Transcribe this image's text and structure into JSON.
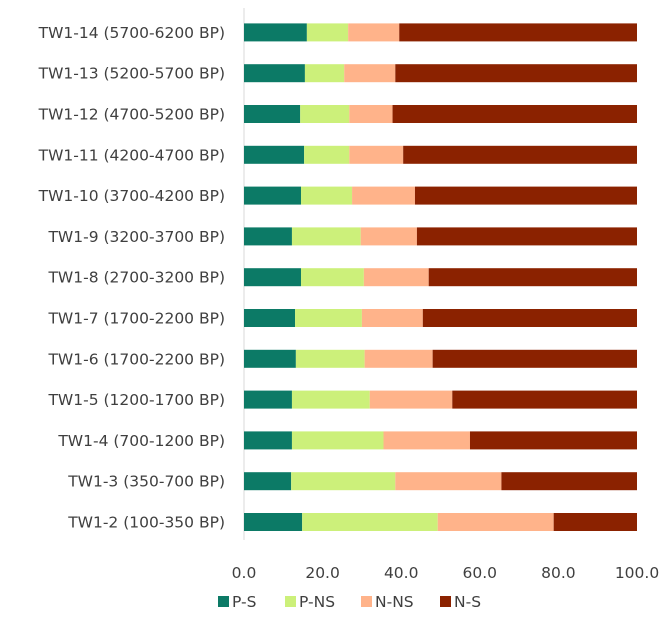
{
  "chart_data": {
    "type": "bar",
    "orientation": "horizontal",
    "stacked": true,
    "categories": [
      "TW1-14 (5700-6200 BP)",
      "TW1-13 (5200-5700 BP)",
      "TW1-12 (4700-5200 BP)",
      "TW1-11 (4200-4700 BP)",
      "TW1-10 (3700-4200 BP)",
      "TW1-9 (3200-3700 BP)",
      "TW1-8 (2700-3200 BP)",
      "TW1-7 (1700-2200 BP)",
      "TW1-6 (1700-2200 BP)",
      "TW1-5 (1200-1700 BP)",
      "TW1-4 (700-1200 BP)",
      "TW1-3 (350-700 BP)",
      "TW1-2 (100-350 BP)"
    ],
    "series": [
      {
        "name": "P-S",
        "color": "#0c7a66",
        "values": [
          16.0,
          15.5,
          14.3,
          15.3,
          14.5,
          12.2,
          14.5,
          13.0,
          13.2,
          12.2,
          12.2,
          12.0,
          14.8
        ]
      },
      {
        "name": "P-NS",
        "color": "#ccf07a",
        "values": [
          10.5,
          10.0,
          12.5,
          11.5,
          13.0,
          17.5,
          16.0,
          17.0,
          17.5,
          19.8,
          23.3,
          26.5,
          34.5
        ]
      },
      {
        "name": "N-NS",
        "color": "#ffb38a",
        "values": [
          13.0,
          13.0,
          11.0,
          13.7,
          16.0,
          14.3,
          16.5,
          15.5,
          17.3,
          21.0,
          22.0,
          27.0,
          29.5
        ]
      },
      {
        "name": "N-S",
        "color": "#8b2200",
        "values": [
          60.5,
          61.5,
          62.2,
          59.5,
          56.5,
          56.0,
          53.0,
          54.5,
          52.0,
          47.0,
          42.5,
          34.5,
          21.2
        ]
      }
    ],
    "xlim": [
      0,
      100
    ],
    "xticks": [
      "0.0",
      "20.0",
      "40.0",
      "60.0",
      "80.0",
      "100.0"
    ],
    "grid": false,
    "legend_position": "bottom"
  }
}
